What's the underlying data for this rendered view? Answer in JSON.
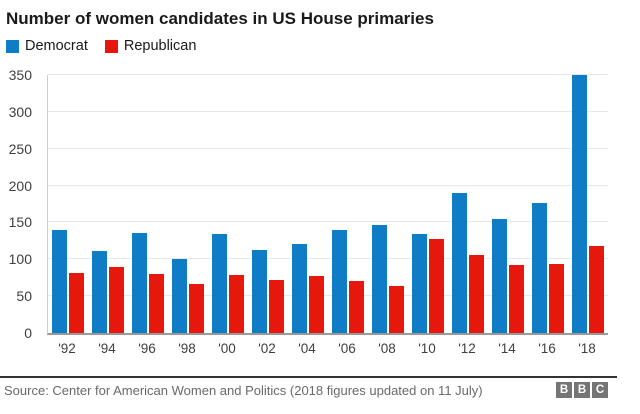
{
  "title": "Number of women candidates in US House primaries",
  "legend": [
    {
      "label": "Democrat",
      "color": "#0f7dc5"
    },
    {
      "label": "Republican",
      "color": "#e6180e"
    }
  ],
  "chart_data": {
    "type": "bar",
    "title": "Number of women candidates in US House primaries",
    "categories": [
      "'92",
      "'94",
      "'96",
      "'98",
      "'00",
      "'02",
      "'04",
      "'06",
      "'08",
      "'10",
      "'12",
      "'14",
      "'16",
      "'18"
    ],
    "series": [
      {
        "name": "Democrat",
        "color": "#0f7dc5",
        "values": [
          140,
          111,
          136,
          101,
          134,
          112,
          121,
          140,
          146,
          134,
          190,
          155,
          176,
          350
        ]
      },
      {
        "name": "Republican",
        "color": "#e6180e",
        "values": [
          82,
          90,
          80,
          66,
          79,
          72,
          78,
          71,
          64,
          127,
          106,
          92,
          94,
          118
        ]
      }
    ],
    "xlabel": "",
    "ylabel": "",
    "ylim": [
      0,
      350
    ],
    "yticks": [
      0,
      50,
      100,
      150,
      200,
      250,
      300,
      350
    ],
    "grid": true,
    "legend_position": "top-left"
  },
  "footer": {
    "source": "Source: Center for American Women and Politics (2018 figures updated on 11 July)",
    "logo_letters": [
      "B",
      "B",
      "C"
    ]
  }
}
